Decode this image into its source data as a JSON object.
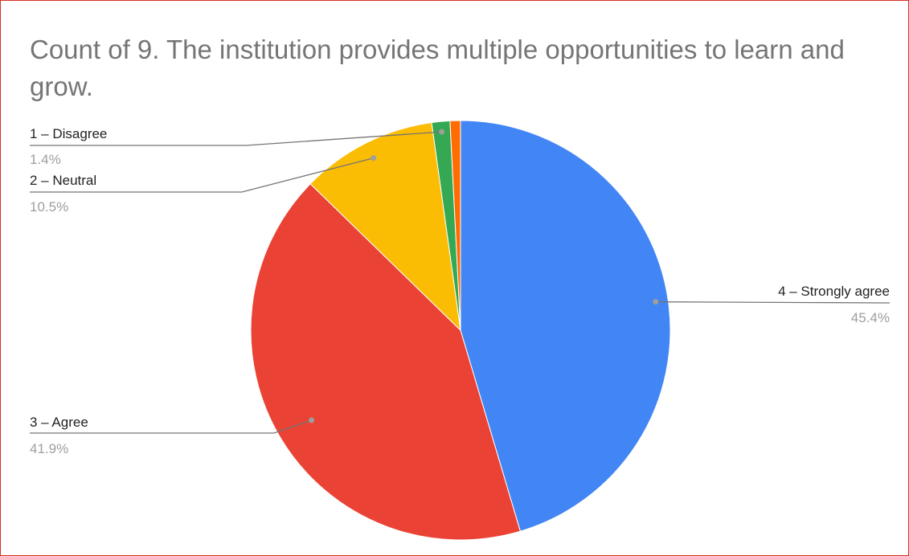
{
  "chart_data": {
    "type": "pie",
    "title": "Count of 9. The institution provides multiple opportunities to learn and grow.",
    "legend": "labels-with-leader-lines",
    "slices": [
      {
        "label": "4 – Strongly agree",
        "value": 45.4,
        "percent_label": "45.4%",
        "color": "#4285f4"
      },
      {
        "label": "3 – Agree",
        "value": 41.9,
        "percent_label": "41.9%",
        "color": "#ea4335"
      },
      {
        "label": "2 – Neutral",
        "value": 10.5,
        "percent_label": "10.5%",
        "color": "#fbbc04"
      },
      {
        "label": "1 – Disagree",
        "value": 1.4,
        "percent_label": "1.4%",
        "color": "#34a853"
      },
      {
        "label": "",
        "value": 0.8,
        "percent_label": "",
        "color": "#ff6d01"
      }
    ]
  }
}
